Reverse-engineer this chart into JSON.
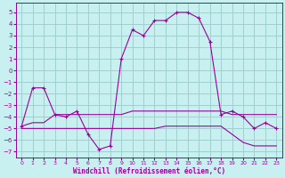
{
  "title": "",
  "xlabel": "Windchill (Refroidissement éolien,°C)",
  "ylabel": "",
  "background_color": "#c8f0f0",
  "grid_color": "#a0d0d0",
  "line_color": "#990099",
  "xlim": [
    -0.5,
    23.5
  ],
  "ylim": [
    -7.5,
    5.8
  ],
  "xticks": [
    0,
    1,
    2,
    3,
    4,
    5,
    6,
    7,
    8,
    9,
    10,
    11,
    12,
    13,
    14,
    15,
    16,
    17,
    18,
    19,
    20,
    21,
    22,
    23
  ],
  "yticks": [
    -7,
    -6,
    -5,
    -4,
    -3,
    -2,
    -1,
    0,
    1,
    2,
    3,
    4,
    5
  ],
  "series1_x": [
    0,
    1,
    2,
    3,
    4,
    5,
    6,
    7,
    8,
    9,
    10,
    11,
    12,
    13,
    14,
    15,
    16,
    17,
    18,
    19,
    20,
    21,
    22,
    23
  ],
  "series1_y": [
    -4.8,
    -1.5,
    -1.5,
    -3.8,
    -4.0,
    -3.5,
    -5.5,
    -6.8,
    -6.5,
    1.0,
    3.5,
    3.0,
    4.3,
    4.3,
    5.0,
    5.0,
    4.5,
    2.5,
    -3.8,
    -3.5,
    -4.0,
    -5.0,
    -4.5,
    -5.0
  ],
  "series2_x": [
    0,
    1,
    2,
    3,
    4,
    5,
    6,
    7,
    8,
    9,
    10,
    11,
    12,
    13,
    14,
    15,
    16,
    17,
    18,
    19,
    20,
    21,
    22,
    23
  ],
  "series2_y": [
    -4.8,
    -4.5,
    -4.5,
    -3.8,
    -3.8,
    -3.8,
    -3.8,
    -3.8,
    -3.8,
    -3.8,
    -3.5,
    -3.5,
    -3.5,
    -3.5,
    -3.5,
    -3.5,
    -3.5,
    -3.5,
    -3.5,
    -3.8,
    -3.8,
    -3.8,
    -3.8,
    -3.8
  ],
  "series3_x": [
    0,
    1,
    2,
    3,
    4,
    5,
    6,
    7,
    8,
    9,
    10,
    11,
    12,
    13,
    14,
    15,
    16,
    17,
    18,
    19,
    20,
    21,
    22,
    23
  ],
  "series3_y": [
    -5.0,
    -5.0,
    -5.0,
    -5.0,
    -5.0,
    -5.0,
    -5.0,
    -5.0,
    -5.0,
    -5.0,
    -5.0,
    -5.0,
    -5.0,
    -4.8,
    -4.8,
    -4.8,
    -4.8,
    -4.8,
    -4.8,
    -5.5,
    -6.2,
    -6.5,
    -6.5,
    -6.5
  ]
}
